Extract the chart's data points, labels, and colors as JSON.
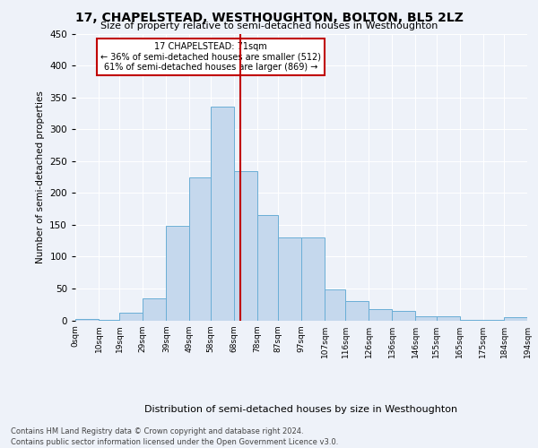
{
  "title": "17, CHAPELSTEAD, WESTHOUGHTON, BOLTON, BL5 2LZ",
  "subtitle": "Size of property relative to semi-detached houses in Westhoughton",
  "xlabel": "Distribution of semi-detached houses by size in Westhoughton",
  "ylabel": "Number of semi-detached properties",
  "footer_line1": "Contains HM Land Registry data © Crown copyright and database right 2024.",
  "footer_line2": "Contains public sector information licensed under the Open Government Licence v3.0.",
  "property_label": "17 CHAPELSTEAD: 71sqm",
  "smaller_pct": "36% of semi-detached houses are smaller (512)",
  "larger_pct": "61% of semi-detached houses are larger (869)",
  "property_value": 71,
  "bin_edges": [
    0,
    10,
    19,
    29,
    39,
    49,
    58,
    68,
    78,
    87,
    97,
    107,
    116,
    126,
    136,
    146,
    155,
    165,
    175,
    184,
    194
  ],
  "bin_labels": [
    "0sqm",
    "10sqm",
    "19sqm",
    "29sqm",
    "39sqm",
    "49sqm",
    "58sqm",
    "68sqm",
    "78sqm",
    "87sqm",
    "97sqm",
    "107sqm",
    "116sqm",
    "126sqm",
    "136sqm",
    "146sqm",
    "155sqm",
    "165sqm",
    "175sqm",
    "184sqm",
    "194sqm"
  ],
  "bar_heights": [
    2,
    1,
    12,
    35,
    148,
    224,
    335,
    234,
    165,
    130,
    130,
    48,
    30,
    18,
    15,
    6,
    7,
    1,
    1,
    5
  ],
  "bar_color": "#c5d8ed",
  "bar_edge_color": "#6aaed6",
  "vline_color": "#c00000",
  "vline_x": 71,
  "background_color": "#eef2f9",
  "plot_bg_color": "#eef2f9",
  "box_color": "#c00000",
  "ylim": [
    0,
    450
  ],
  "yticks": [
    0,
    50,
    100,
    150,
    200,
    250,
    300,
    350,
    400,
    450
  ]
}
